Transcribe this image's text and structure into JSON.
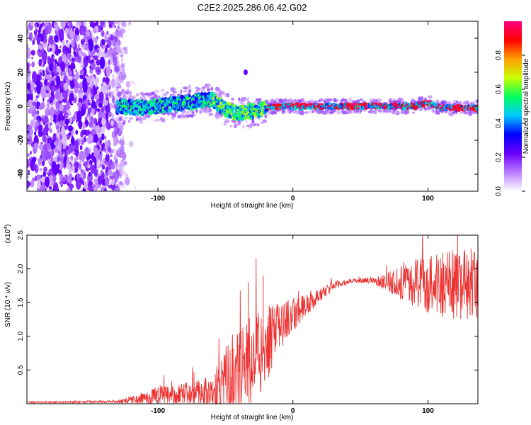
{
  "figure_title": "C2E2.2025.286.06.42.G02",
  "chart_data": [
    {
      "type": "heatmap",
      "title": "C2E2.2025.286.06.42.G02",
      "xlabel": "Height of straight line (km)",
      "ylabel": "Frequency (Hz)",
      "xlim": [
        -197,
        137
      ],
      "ylim": [
        -50,
        50
      ],
      "x_ticks": [
        -100,
        0,
        100
      ],
      "y_ticks": [
        -40,
        -20,
        0,
        20,
        40
      ],
      "x_tick_labels": [
        "-100",
        "0",
        "100"
      ],
      "y_tick_labels": [
        "-40",
        "-20",
        "0",
        "20",
        "40"
      ],
      "colorbar": {
        "label": "Normalized spectral amplitude",
        "range": [
          0,
          1
        ],
        "ticks": [
          0.0,
          0.2,
          0.4,
          0.6,
          0.8
        ],
        "tick_labels": [
          "0.0",
          "0.2",
          "0.4",
          "0.6",
          "0.8"
        ],
        "colormap": [
          "#ffffff",
          "#b97cff",
          "#6a00ff",
          "#0000ff",
          "#00c8ff",
          "#00ff60",
          "#c8ff00",
          "#ffa000",
          "#ff0000",
          "#ff0080"
        ]
      },
      "noise_region_x": [
        -197,
        -125
      ],
      "ridge_frequency": [
        {
          "x": -130,
          "f": 0
        },
        {
          "x": -110,
          "f": -1
        },
        {
          "x": -90,
          "f": 1
        },
        {
          "x": -70,
          "f": 3
        },
        {
          "x": -60,
          "f": 4
        },
        {
          "x": -50,
          "f": -2
        },
        {
          "x": -40,
          "f": -4
        },
        {
          "x": -30,
          "f": -3
        },
        {
          "x": -20,
          "f": -1
        },
        {
          "x": -10,
          "f": 0
        },
        {
          "x": 0,
          "f": 0
        },
        {
          "x": 50,
          "f": 0
        },
        {
          "x": 90,
          "f": 0
        },
        {
          "x": 100,
          "f": 2
        },
        {
          "x": 110,
          "f": -1
        },
        {
          "x": 137,
          "f": -1
        }
      ],
      "isolated_feature": {
        "x": -35,
        "f": 20
      }
    },
    {
      "type": "line",
      "xlabel": "Height of straight line (km)",
      "ylabel": "SNR (10 * v/v)",
      "y_multiplier": "(x10",
      "y_multiplier_exp": "4",
      "xlim": [
        -197,
        137
      ],
      "ylim": [
        0,
        2.5
      ],
      "x_ticks": [
        -100,
        0,
        100
      ],
      "y_ticks": [
        0.5,
        1.0,
        1.5,
        2.0,
        2.5
      ],
      "x_tick_labels": [
        "-100",
        "0",
        "100"
      ],
      "y_tick_labels": [
        "0.5",
        "1.0",
        "1.5",
        "2.0",
        "2.5"
      ],
      "color": "#ee3333",
      "envelope": [
        {
          "x": -197,
          "base": 0.02,
          "amp": 0.01
        },
        {
          "x": -130,
          "base": 0.03,
          "amp": 0.02
        },
        {
          "x": -115,
          "base": 0.05,
          "amp": 0.08
        },
        {
          "x": -100,
          "base": 0.1,
          "amp": 0.15
        },
        {
          "x": -85,
          "base": 0.12,
          "amp": 0.15
        },
        {
          "x": -60,
          "base": 0.15,
          "amp": 0.25
        },
        {
          "x": -50,
          "base": 0.3,
          "amp": 0.5
        },
        {
          "x": -40,
          "base": 0.4,
          "amp": 0.6
        },
        {
          "x": -30,
          "base": 0.6,
          "amp": 0.7
        },
        {
          "x": -20,
          "base": 0.8,
          "amp": 0.6
        },
        {
          "x": -10,
          "base": 1.1,
          "amp": 0.35
        },
        {
          "x": 0,
          "base": 1.3,
          "amp": 0.25
        },
        {
          "x": 10,
          "base": 1.45,
          "amp": 0.2
        },
        {
          "x": 20,
          "base": 1.6,
          "amp": 0.1
        },
        {
          "x": 30,
          "base": 1.75,
          "amp": 0.06
        },
        {
          "x": 45,
          "base": 1.82,
          "amp": 0.03
        },
        {
          "x": 60,
          "base": 1.82,
          "amp": 0.05
        },
        {
          "x": 70,
          "base": 1.8,
          "amp": 0.15
        },
        {
          "x": 85,
          "base": 1.75,
          "amp": 0.3
        },
        {
          "x": 100,
          "base": 1.75,
          "amp": 0.45
        },
        {
          "x": 115,
          "base": 1.7,
          "amp": 0.55
        },
        {
          "x": 137,
          "base": 1.7,
          "amp": 0.5
        }
      ],
      "peak_markers": [
        {
          "x": -33,
          "y": 1.8
        },
        {
          "x": -22,
          "y": 1.9
        },
        {
          "x": -5,
          "y": 1.5
        },
        {
          "x": 82,
          "y": 2.1
        },
        {
          "x": 122,
          "y": 2.5
        },
        {
          "x": 132,
          "y": 2.3
        }
      ]
    }
  ]
}
